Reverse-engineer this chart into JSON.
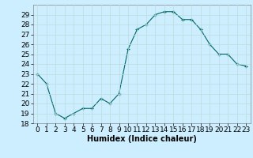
{
  "x": [
    0,
    1,
    2,
    3,
    4,
    5,
    6,
    7,
    8,
    9,
    10,
    11,
    12,
    13,
    14,
    15,
    16,
    17,
    18,
    19,
    20,
    21,
    22,
    23
  ],
  "y": [
    23,
    22,
    19,
    18.5,
    19,
    19.5,
    19.5,
    20.5,
    20,
    21,
    25.5,
    27.5,
    28,
    29,
    29.3,
    29.3,
    28.5,
    28.5,
    27.5,
    26,
    25,
    25,
    24,
    23.8
  ],
  "line_color": "#006666",
  "marker_color": "#006666",
  "bg_color": "#cceeff",
  "grid_color": "#bbdddd",
  "xlabel": "Humidex (Indice chaleur)",
  "ylim": [
    18,
    30
  ],
  "xlim": [
    -0.5,
    23.5
  ],
  "yticks": [
    18,
    19,
    20,
    21,
    22,
    23,
    24,
    25,
    26,
    27,
    28,
    29
  ],
  "xticks": [
    0,
    1,
    2,
    3,
    4,
    5,
    6,
    7,
    8,
    9,
    10,
    11,
    12,
    13,
    14,
    15,
    16,
    17,
    18,
    19,
    20,
    21,
    22,
    23
  ],
  "xlabel_fontsize": 7,
  "tick_fontsize": 6.5
}
